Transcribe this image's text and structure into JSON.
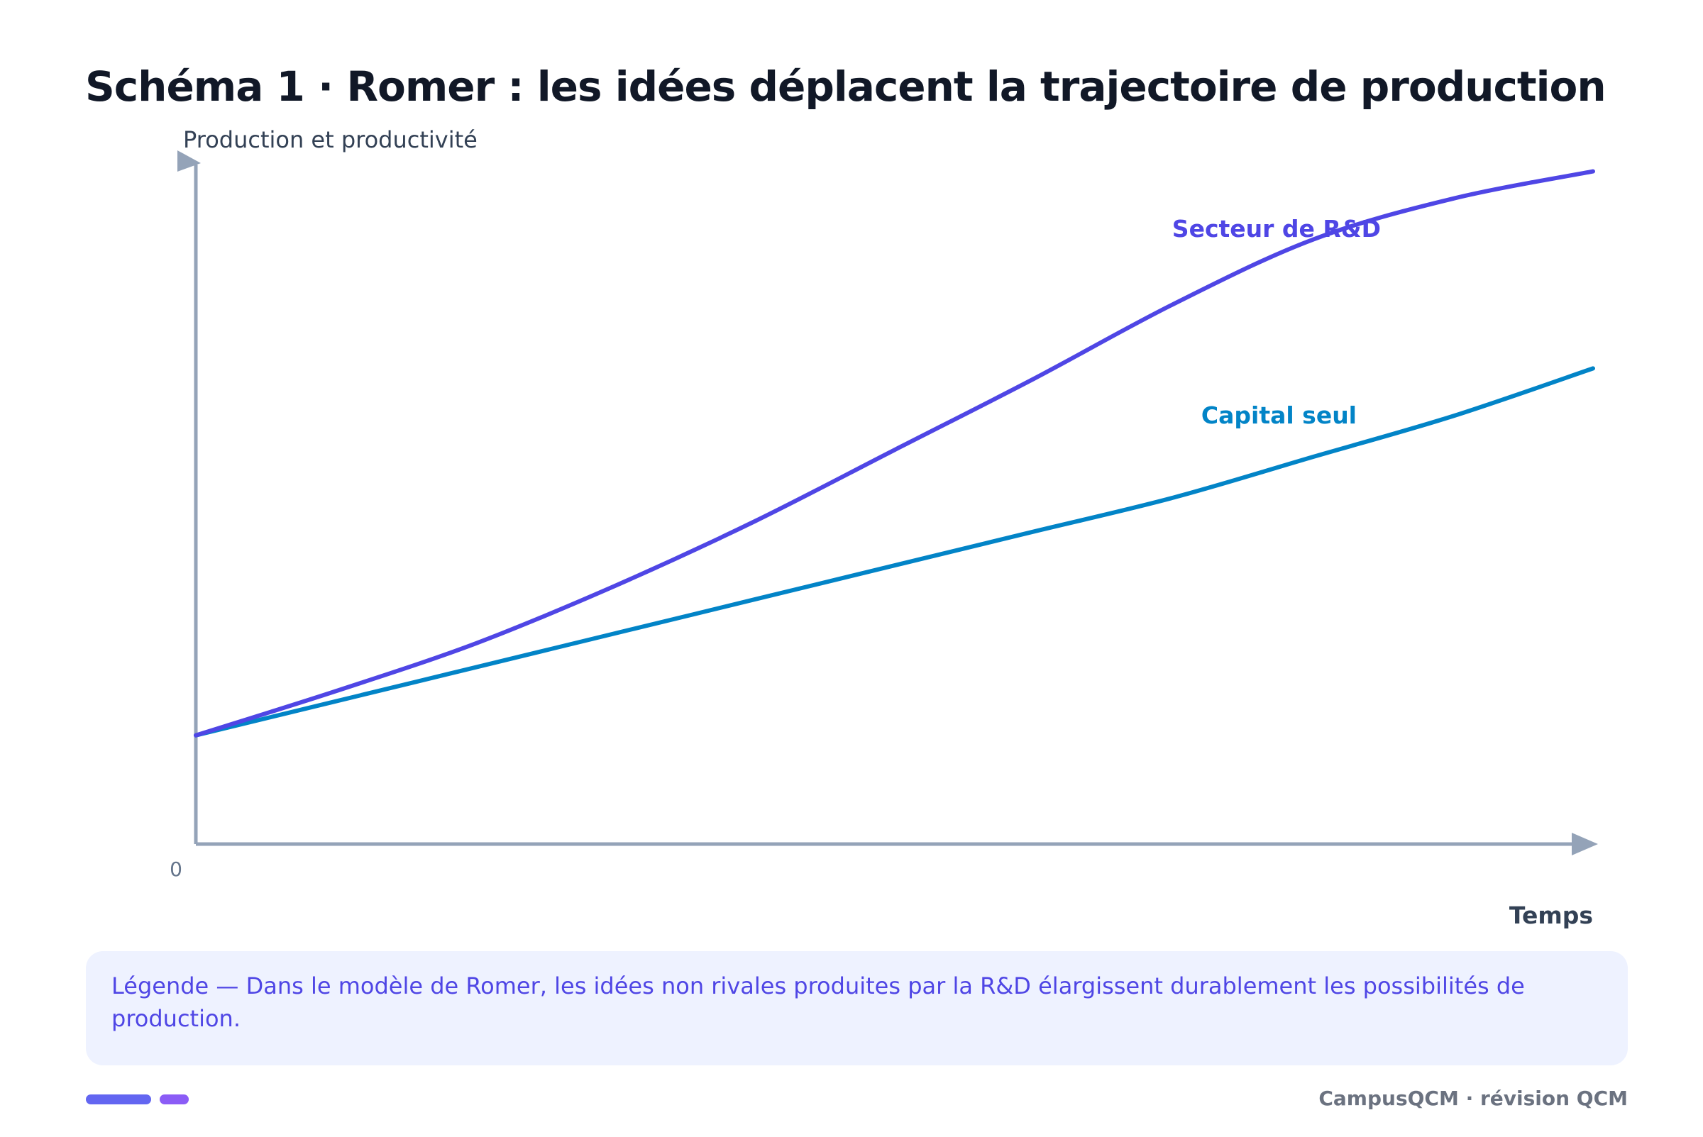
{
  "page": {
    "title": "Schéma 1 · Romer : les idées déplacent la trajectoire de production",
    "legend_text": "Légende — Dans le modèle de Romer, les idées non rivales produites par la R&D élargissent durablement les possibilités de production.",
    "footer": "CampusQCM · révision QCM"
  },
  "chart_data": {
    "type": "line",
    "ylabel": "Production et productivité",
    "xlabel": "Temps",
    "origin_label": "0",
    "xlim": [
      0,
      10
    ],
    "ylim": [
      0,
      10
    ],
    "grid": false,
    "legend": "inline labels",
    "series": [
      {
        "name": "Capital seul",
        "color": "#0284c7",
        "x": [
          0,
          1,
          2,
          3,
          4,
          5,
          6,
          7,
          8,
          9,
          10
        ],
        "y": [
          1.6,
          2.1,
          2.6,
          3.1,
          3.6,
          4.1,
          4.6,
          5.1,
          5.7,
          6.3,
          7.0
        ]
      },
      {
        "name": "Secteur de R&D",
        "color": "#4f46e5",
        "x": [
          0,
          1,
          2,
          3,
          4,
          5,
          6,
          7,
          8,
          9,
          10
        ],
        "y": [
          1.6,
          2.25,
          2.95,
          3.8,
          4.75,
          5.8,
          6.85,
          7.95,
          8.9,
          9.5,
          9.9
        ]
      }
    ],
    "colors": {
      "axis": "#94a3b8",
      "axis_label": "#334155",
      "origin": "#64748b"
    }
  }
}
